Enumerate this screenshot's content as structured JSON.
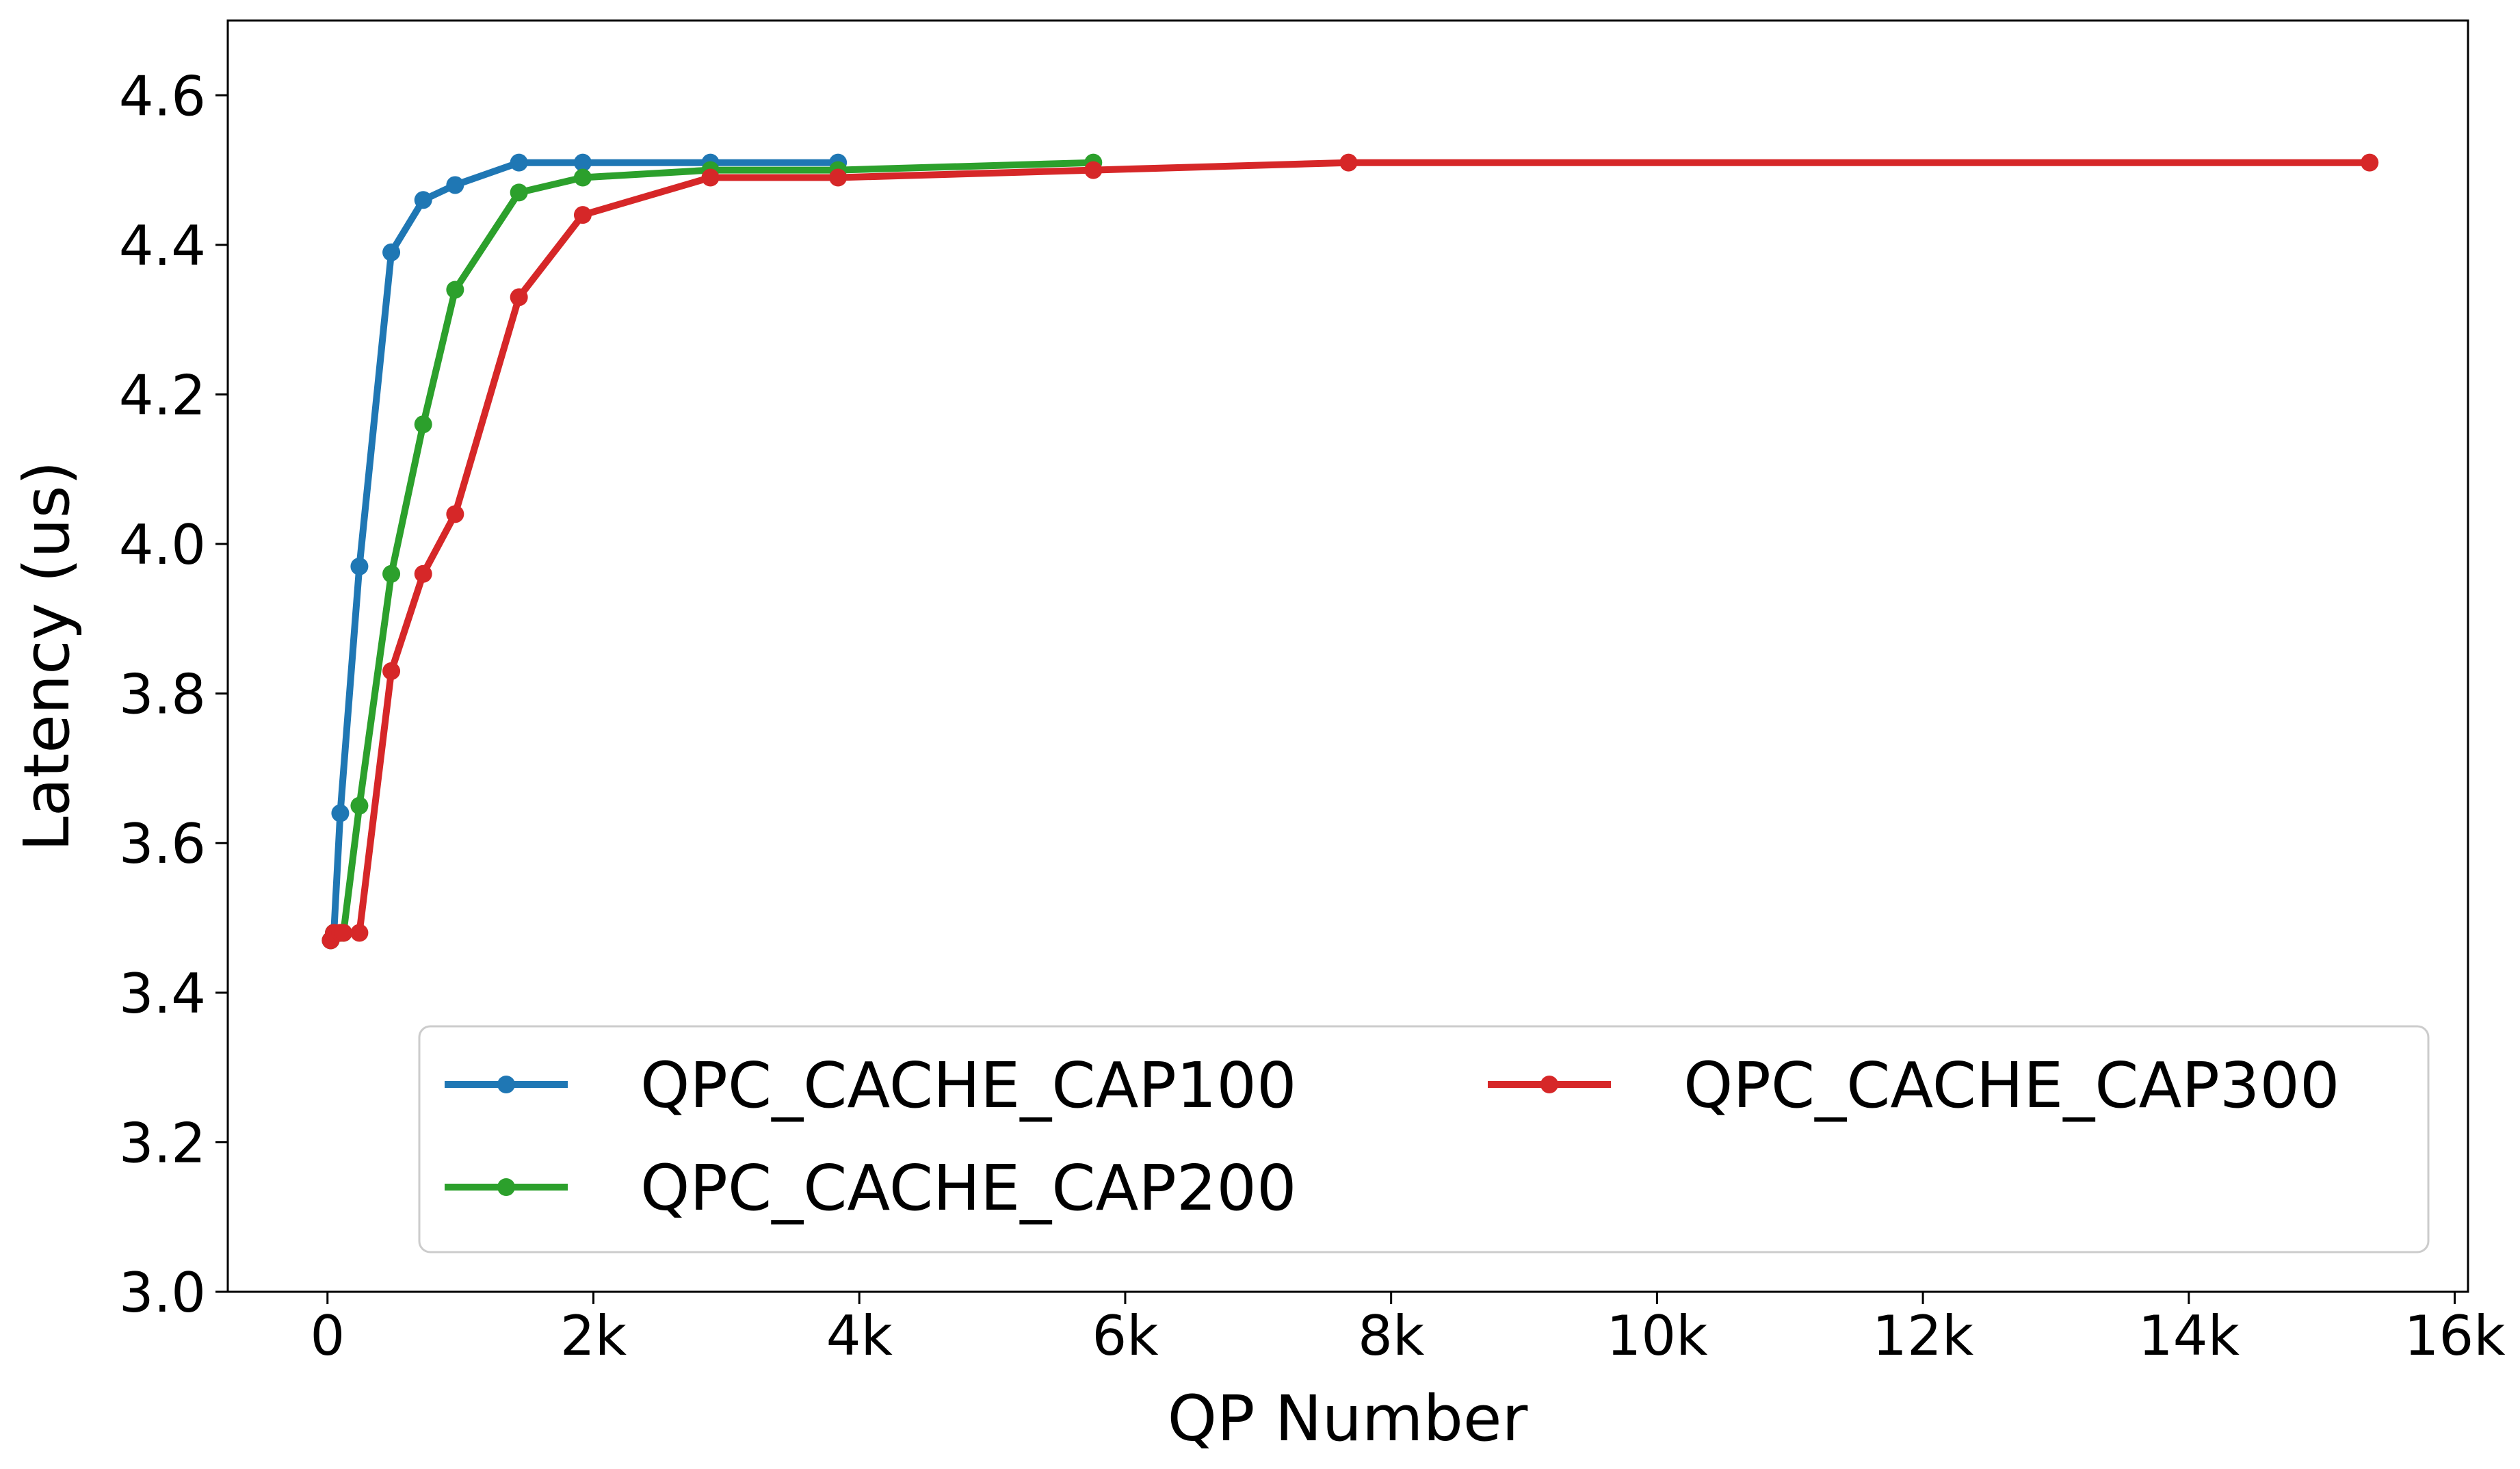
{
  "chart_data": {
    "type": "line",
    "title": "",
    "xlabel": "QP Number",
    "ylabel": "Latency (us)",
    "xlim": [
      -750,
      16100
    ],
    "ylim": [
      3.0,
      4.7
    ],
    "x_ticks": [
      0,
      2000,
      4000,
      6000,
      8000,
      10000,
      12000,
      14000,
      16000
    ],
    "x_tick_labels": [
      "0",
      "2k",
      "4k",
      "6k",
      "8k",
      "10k",
      "12k",
      "14k",
      "16k"
    ],
    "y_ticks": [
      3.0,
      3.2,
      3.4,
      3.6,
      3.8,
      4.0,
      4.2,
      4.4,
      4.6
    ],
    "y_tick_labels": [
      "3.0",
      "3.2",
      "3.4",
      "3.6",
      "3.8",
      "4.0",
      "4.2",
      "4.4",
      "4.6"
    ],
    "grid": false,
    "legend": "lower-right",
    "series": [
      {
        "name": "QPC_CACHE_CAP100",
        "color": "#1f77b4",
        "x": [
          24,
          48,
          96,
          240,
          480,
          720,
          960,
          1440,
          1920,
          2880,
          3840
        ],
        "y": [
          3.47,
          3.48,
          3.64,
          3.97,
          4.39,
          4.46,
          4.48,
          4.51,
          4.51,
          4.51,
          4.51
        ]
      },
      {
        "name": "QPC_CACHE_CAP200",
        "color": "#2ca02c",
        "x": [
          24,
          48,
          96,
          120,
          240,
          480,
          720,
          960,
          1440,
          1920,
          2880,
          3840,
          5760
        ],
        "y": [
          3.47,
          3.48,
          3.48,
          3.48,
          3.65,
          3.96,
          4.16,
          4.34,
          4.47,
          4.49,
          4.5,
          4.5,
          4.51
        ]
      },
      {
        "name": "QPC_CACHE_CAP300",
        "color": "#d62728",
        "x": [
          24,
          48,
          96,
          120,
          240,
          480,
          720,
          960,
          1440,
          1920,
          2880,
          3840,
          5760,
          7680,
          15360
        ],
        "y": [
          3.47,
          3.48,
          3.48,
          3.48,
          3.48,
          3.83,
          3.96,
          4.04,
          4.33,
          4.44,
          4.49,
          4.49,
          4.5,
          4.51,
          4.51
        ]
      }
    ]
  }
}
